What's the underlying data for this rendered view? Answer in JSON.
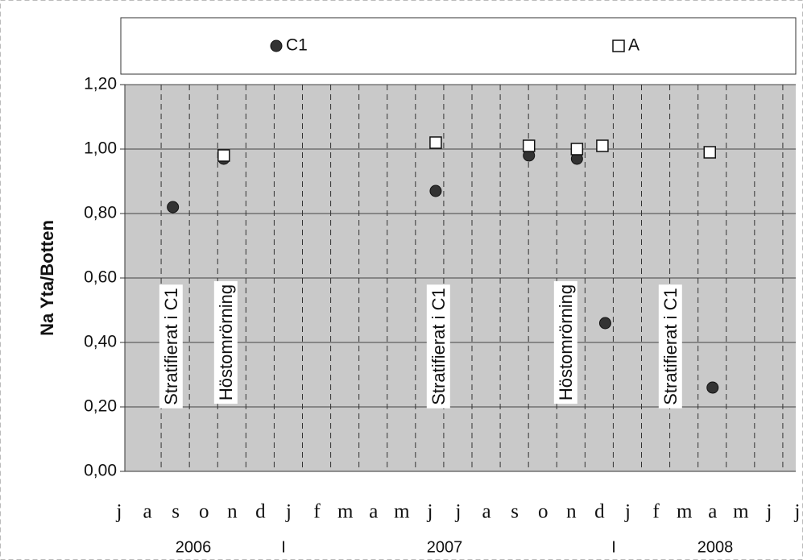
{
  "chart_data": {
    "type": "scatter",
    "ylabel": "Na Yta/Botten",
    "ylim": [
      0,
      1.2
    ],
    "yticks": [
      {
        "value": 0,
        "label": "0,00"
      },
      {
        "value": 0.2,
        "label": "0,20"
      },
      {
        "value": 0.4,
        "label": "0,40"
      },
      {
        "value": 0.6,
        "label": "0,60"
      },
      {
        "value": 0.8,
        "label": "0,80"
      },
      {
        "value": 1.0,
        "label": "1,00"
      },
      {
        "value": 1.2,
        "label": "1,20"
      }
    ],
    "xlim": [
      0,
      24
    ],
    "xticks": [
      {
        "value": 0,
        "label": "j"
      },
      {
        "value": 1,
        "label": "a"
      },
      {
        "value": 2,
        "label": "s"
      },
      {
        "value": 3,
        "label": "o"
      },
      {
        "value": 4,
        "label": "n"
      },
      {
        "value": 5,
        "label": "d"
      },
      {
        "value": 6,
        "label": "j"
      },
      {
        "value": 7,
        "label": "f"
      },
      {
        "value": 8,
        "label": "m"
      },
      {
        "value": 9,
        "label": "a"
      },
      {
        "value": 10,
        "label": "m"
      },
      {
        "value": 11,
        "label": "j"
      },
      {
        "value": 12,
        "label": "j"
      },
      {
        "value": 13,
        "label": "a"
      },
      {
        "value": 14,
        "label": "s"
      },
      {
        "value": 15,
        "label": "o"
      },
      {
        "value": 16,
        "label": "n"
      },
      {
        "value": 17,
        "label": "d"
      },
      {
        "value": 18,
        "label": "j"
      },
      {
        "value": 19,
        "label": "f"
      },
      {
        "value": 20,
        "label": "m"
      },
      {
        "value": 21,
        "label": "a"
      },
      {
        "value": 22,
        "label": "m"
      },
      {
        "value": 23,
        "label": "j"
      },
      {
        "value": 24,
        "label": "j"
      }
    ],
    "years": [
      "2006",
      "I",
      "2007",
      "I",
      "2008"
    ],
    "annotations": [
      "Stratifierat i C1",
      "Höstomrörning",
      "Stratifierat i C1",
      "Höstomrörning",
      "Stratifierat i C1"
    ],
    "grid": true,
    "series": [
      {
        "name": "C1",
        "color": "#333333",
        "marker": "circle",
        "x": [
          1.9,
          3.7,
          11.2,
          14.5,
          16.2,
          17.2,
          21.0
        ],
        "values": [
          0.82,
          0.97,
          0.87,
          0.98,
          0.97,
          0.46,
          0.26
        ]
      },
      {
        "name": "A",
        "color": "#ffffff",
        "marker": "square",
        "x": [
          3.7,
          11.2,
          14.5,
          16.2,
          17.1,
          20.9
        ],
        "values": [
          0.98,
          1.02,
          1.01,
          1.0,
          1.01,
          0.99
        ]
      }
    ]
  }
}
